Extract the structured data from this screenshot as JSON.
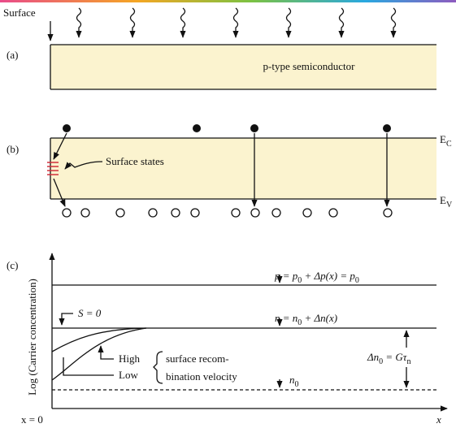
{
  "panel_a": {
    "label": "(a)",
    "surface": "Surface",
    "material": "p-type semiconductor"
  },
  "panel_b": {
    "label": "(b)",
    "surface_states": "Surface states",
    "ec": [
      "E",
      "C"
    ],
    "ev": [
      "E",
      "V"
    ]
  },
  "panel_c": {
    "label": "(c)",
    "y_axis": "Log (Carrier concentration)",
    "x_origin": "x = 0",
    "x_axis": "x",
    "p_eq": [
      "p = p",
      "0",
      " + Δp(x) = p",
      "0"
    ],
    "s_zero": "S = 0",
    "n_eq": [
      "n = n",
      "0",
      " + Δn(x)"
    ],
    "high": "High",
    "low": "Low",
    "velocity": [
      "surface recom-",
      "bination velocity"
    ],
    "delta_n": [
      "Δn",
      "0",
      " = Gτ",
      "n"
    ],
    "n0": [
      "n",
      "0"
    ]
  }
}
